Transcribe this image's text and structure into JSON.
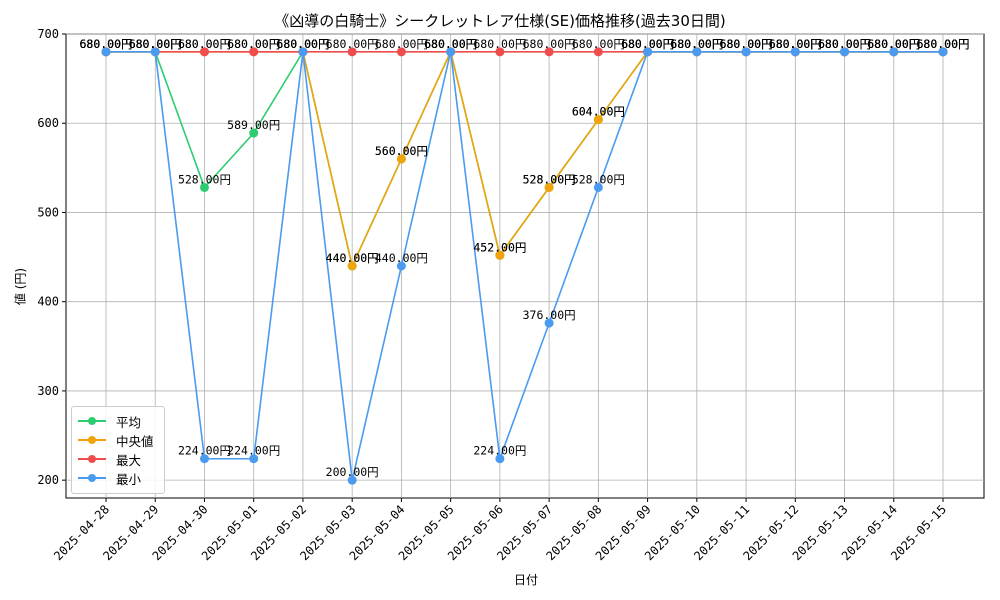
{
  "chart_data": {
    "type": "line",
    "title": "《凶導の白騎士》シークレットレア仕様(SE)価格推移(過去30日間)",
    "xlabel": "日付",
    "ylabel": "値 (円)",
    "ylim": [
      180,
      700
    ],
    "yticks": [
      200,
      300,
      400,
      500,
      600,
      700
    ],
    "grid": true,
    "legend_position": "lower-left",
    "label_suffix": "円",
    "categories": [
      "2025-04-28",
      "2025-04-29",
      "2025-04-30",
      "2025-05-01",
      "2025-05-02",
      "2025-05-03",
      "2025-05-04",
      "2025-05-05",
      "2025-05-06",
      "2025-05-07",
      "2025-05-08",
      "2025-05-09",
      "2025-05-10",
      "2025-05-11",
      "2025-05-12",
      "2025-05-13",
      "2025-05-14",
      "2025-05-15"
    ],
    "series": [
      {
        "name": "平均",
        "color": "#2ecc71",
        "values": [
          680,
          680,
          528,
          589,
          680,
          440,
          560,
          680,
          452,
          528,
          604,
          680,
          680,
          680,
          680,
          680,
          680,
          680
        ]
      },
      {
        "name": "中央値",
        "color": "#f0a30a",
        "values": [
          680,
          680,
          680,
          680,
          680,
          440,
          560,
          680,
          452,
          528,
          604,
          680,
          680,
          680,
          680,
          680,
          680,
          680
        ]
      },
      {
        "name": "最大",
        "color": "#ef4d4d",
        "values": [
          680,
          680,
          680,
          680,
          680,
          680,
          680,
          680,
          680,
          680,
          680,
          680,
          680,
          680,
          680,
          680,
          680,
          680
        ]
      },
      {
        "name": "最小",
        "color": "#4a9bf0",
        "values": [
          680,
          680,
          224,
          224,
          680,
          200,
          440,
          680,
          224,
          376,
          528,
          680,
          680,
          680,
          680,
          680,
          680,
          680
        ]
      }
    ]
  }
}
